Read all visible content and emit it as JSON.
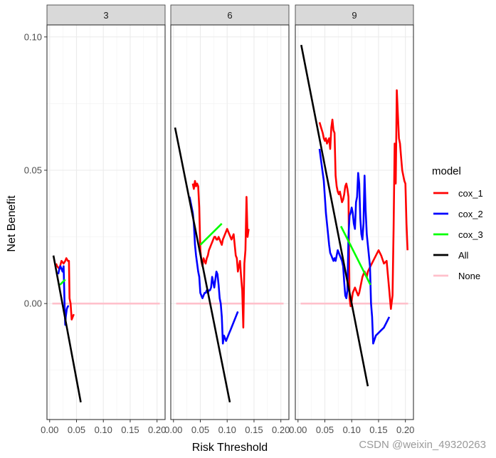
{
  "chart_data": {
    "type": "line",
    "xlabel": "Risk Threshold",
    "ylabel": "Net Benefit",
    "xlim": [
      -0.005,
      0.215
    ],
    "ylim": [
      -0.0435,
      0.1045
    ],
    "x_ticks": [
      0.0,
      0.05,
      0.1,
      0.15,
      0.2
    ],
    "x_tick_labels": [
      "0.00",
      "0.05",
      "0.10",
      "0.15",
      "0.20"
    ],
    "y_ticks": [
      0.0,
      0.05,
      0.1
    ],
    "y_tick_labels": [
      "0.00",
      "0.05",
      "0.10"
    ],
    "grid": true,
    "legend": {
      "title": "model",
      "position": "right",
      "entries": [
        {
          "name": "cox_1",
          "color": "#FF0000"
        },
        {
          "name": "cox_2",
          "color": "#0000FF"
        },
        {
          "name": "cox_3",
          "color": "#00FF00"
        },
        {
          "name": "All",
          "color": "#000000"
        },
        {
          "name": "None",
          "color": "#FFC0CB"
        }
      ]
    },
    "facets": [
      {
        "label": "3",
        "series": [
          {
            "name": "None",
            "x": [
              0.005,
              0.205
            ],
            "y": [
              0,
              0
            ]
          },
          {
            "name": "cox_1",
            "x": [
              0.012,
              0.014,
              0.018,
              0.022,
              0.026,
              0.029,
              0.031,
              0.034,
              0.036,
              0.037,
              0.039,
              0.041,
              0.043,
              0.045
            ],
            "y": [
              0.015,
              0.014,
              0.013,
              0.016,
              0.015,
              0.016,
              0.017,
              0.016,
              0.016,
              0.002,
              0.0,
              -0.006,
              -0.005,
              -0.004
            ]
          },
          {
            "name": "cox_2",
            "x": [
              0.016,
              0.018,
              0.02,
              0.022,
              0.024,
              0.026,
              0.028,
              0.029,
              0.03,
              0.032,
              0.034,
              0.036
            ],
            "y": [
              0.011,
              0.013,
              0.014,
              0.013,
              0.012,
              0.014,
              -0.002,
              -0.008,
              -0.005,
              -0.002,
              -0.001,
              -0.001
            ]
          },
          {
            "name": "cox_3",
            "x": [
              0.019,
              0.024,
              0.029
            ],
            "y": [
              0.007,
              0.008,
              0.009
            ]
          },
          {
            "name": "All",
            "x": [
              0.007,
              0.058
            ],
            "y": [
              0.018,
              -0.037
            ]
          }
        ]
      },
      {
        "label": "6",
        "series": [
          {
            "name": "None",
            "x": [
              0.005,
              0.205
            ],
            "y": [
              0,
              0
            ]
          },
          {
            "name": "cox_1",
            "x": [
              0.036,
              0.038,
              0.04,
              0.042,
              0.044,
              0.046,
              0.048,
              0.05,
              0.052,
              0.054,
              0.056,
              0.058,
              0.06,
              0.062,
              0.064,
              0.066,
              0.068,
              0.07,
              0.072,
              0.074,
              0.076,
              0.078,
              0.08,
              0.082,
              0.084,
              0.086,
              0.088,
              0.09,
              0.092,
              0.094,
              0.096,
              0.098,
              0.1,
              0.102,
              0.104,
              0.106,
              0.108,
              0.11,
              0.112,
              0.114,
              0.116,
              0.118,
              0.12,
              0.122,
              0.124,
              0.126,
              0.128,
              0.13,
              0.132,
              0.134,
              0.136,
              0.138,
              0.14
            ],
            "y": [
              0.045,
              0.043,
              0.046,
              0.044,
              0.045,
              0.044,
              0.036,
              0.02,
              0.016,
              0.014,
              0.017,
              0.016,
              0.015,
              0.017,
              0.018,
              0.02,
              0.021,
              0.022,
              0.023,
              0.024,
              0.025,
              0.025,
              0.024,
              0.024,
              0.025,
              0.024,
              0.023,
              0.022,
              0.024,
              0.025,
              0.026,
              0.027,
              0.028,
              0.027,
              0.026,
              0.025,
              0.024,
              0.025,
              0.026,
              0.022,
              0.018,
              0.017,
              0.012,
              0.014,
              0.016,
              0.01,
              0.005,
              -0.009,
              0.015,
              0.02,
              0.04,
              0.025,
              0.028
            ]
          },
          {
            "name": "cox_2",
            "x": [
              0.03,
              0.033,
              0.036,
              0.038,
              0.04,
              0.042,
              0.044,
              0.046,
              0.048,
              0.05,
              0.052,
              0.054,
              0.056,
              0.058,
              0.06,
              0.062,
              0.064,
              0.066,
              0.068,
              0.07,
              0.072,
              0.074,
              0.076,
              0.078,
              0.08,
              0.082,
              0.084,
              0.086,
              0.088,
              0.09,
              0.092,
              0.094,
              0.096,
              0.098,
              0.1,
              0.102,
              0.104,
              0.106,
              0.108,
              0.11,
              0.112,
              0.114,
              0.116,
              0.118,
              0.12
            ],
            "y": [
              0.04,
              0.037,
              0.034,
              0.03,
              0.022,
              0.018,
              0.015,
              0.012,
              0.01,
              0.004,
              0.003,
              0.002,
              0.003,
              0.004,
              0.004,
              0.005,
              0.004,
              0.005,
              0.005,
              0.006,
              0.01,
              0.008,
              0.006,
              0.009,
              0.012,
              0.011,
              0.007,
              0.002,
              0.0,
              -0.005,
              -0.015,
              -0.012,
              -0.013,
              -0.014,
              -0.013,
              -0.012,
              -0.011,
              -0.01,
              -0.009,
              -0.008,
              -0.007,
              -0.006,
              -0.005,
              -0.004,
              -0.003
            ]
          },
          {
            "name": "cox_3",
            "x": [
              0.05,
              0.06,
              0.07,
              0.08,
              0.09
            ],
            "y": [
              0.022,
              0.024,
              0.026,
              0.028,
              0.03
            ]
          },
          {
            "name": "All",
            "x": [
              0.003,
              0.105
            ],
            "y": [
              0.066,
              -0.037
            ]
          }
        ]
      },
      {
        "label": "9",
        "series": [
          {
            "name": "None",
            "x": [
              0.005,
              0.205
            ],
            "y": [
              0,
              0
            ]
          },
          {
            "name": "cox_1",
            "x": [
              0.04,
              0.043,
              0.046,
              0.048,
              0.05,
              0.052,
              0.054,
              0.056,
              0.058,
              0.06,
              0.062,
              0.064,
              0.066,
              0.068,
              0.07,
              0.072,
              0.074,
              0.076,
              0.078,
              0.08,
              0.082,
              0.084,
              0.086,
              0.088,
              0.09,
              0.092,
              0.094,
              0.096,
              0.098,
              0.1,
              0.102,
              0.104,
              0.106,
              0.108,
              0.11,
              0.112,
              0.114,
              0.116,
              0.118,
              0.12,
              0.122,
              0.124,
              0.126,
              0.128,
              0.13,
              0.135,
              0.14,
              0.145,
              0.15,
              0.155,
              0.16,
              0.165,
              0.17,
              0.173,
              0.176,
              0.178,
              0.18,
              0.182,
              0.184,
              0.186,
              0.188,
              0.19,
              0.192,
              0.194,
              0.196,
              0.198,
              0.2,
              0.202,
              0.204
            ],
            "y": [
              0.068,
              0.066,
              0.064,
              0.062,
              0.061,
              0.062,
              0.06,
              0.061,
              0.062,
              0.058,
              0.066,
              0.069,
              0.065,
              0.064,
              0.048,
              0.044,
              0.042,
              0.041,
              0.042,
              0.04,
              0.038,
              0.039,
              0.041,
              0.044,
              0.045,
              0.043,
              0.04,
              0.002,
              -0.001,
              0.001,
              0.004,
              0.005,
              0.006,
              0.005,
              0.004,
              0.003,
              0.004,
              0.006,
              0.008,
              0.01,
              0.011,
              0.012,
              0.011,
              0.01,
              0.012,
              0.014,
              0.016,
              0.018,
              0.02,
              0.018,
              0.015,
              0.016,
              0.005,
              -0.002,
              0.003,
              0.028,
              0.06,
              0.045,
              0.08,
              0.071,
              0.062,
              0.06,
              0.055,
              0.05,
              0.048,
              0.046,
              0.045,
              0.03,
              0.02
            ]
          },
          {
            "name": "cox_2",
            "x": [
              0.04,
              0.044,
              0.048,
              0.05,
              0.052,
              0.054,
              0.056,
              0.058,
              0.06,
              0.062,
              0.064,
              0.066,
              0.068,
              0.07,
              0.072,
              0.074,
              0.076,
              0.078,
              0.08,
              0.082,
              0.084,
              0.086,
              0.088,
              0.09,
              0.092,
              0.094,
              0.096,
              0.098,
              0.1,
              0.102,
              0.104,
              0.106,
              0.108,
              0.11,
              0.112,
              0.114,
              0.116,
              0.118,
              0.12,
              0.122,
              0.124,
              0.126,
              0.128,
              0.13,
              0.132,
              0.134,
              0.136,
              0.138,
              0.14,
              0.145,
              0.15,
              0.155,
              0.16,
              0.165,
              0.17
            ],
            "y": [
              0.058,
              0.052,
              0.046,
              0.04,
              0.034,
              0.03,
              0.026,
              0.022,
              0.019,
              0.018,
              0.017,
              0.016,
              0.017,
              0.016,
              0.018,
              0.02,
              0.019,
              0.018,
              0.017,
              0.016,
              0.014,
              0.008,
              0.003,
              0.002,
              0.005,
              0.025,
              0.033,
              0.034,
              0.036,
              0.034,
              0.03,
              0.028,
              0.038,
              0.04,
              0.049,
              0.045,
              0.032,
              0.026,
              0.024,
              0.03,
              0.048,
              0.035,
              0.026,
              0.022,
              0.018,
              0.014,
              0.0,
              -0.005,
              -0.015,
              -0.012,
              -0.011,
              -0.01,
              -0.009,
              -0.007,
              -0.005
            ]
          },
          {
            "name": "cox_3",
            "x": [
              0.08,
              0.095,
              0.11,
              0.125,
              0.135
            ],
            "y": [
              0.029,
              0.023,
              0.017,
              0.011,
              0.007
            ]
          },
          {
            "name": "All",
            "x": [
              0.006,
              0.13
            ],
            "y": [
              0.097,
              -0.031
            ]
          }
        ]
      }
    ]
  },
  "watermark": "CSDN @weixin_49320263"
}
